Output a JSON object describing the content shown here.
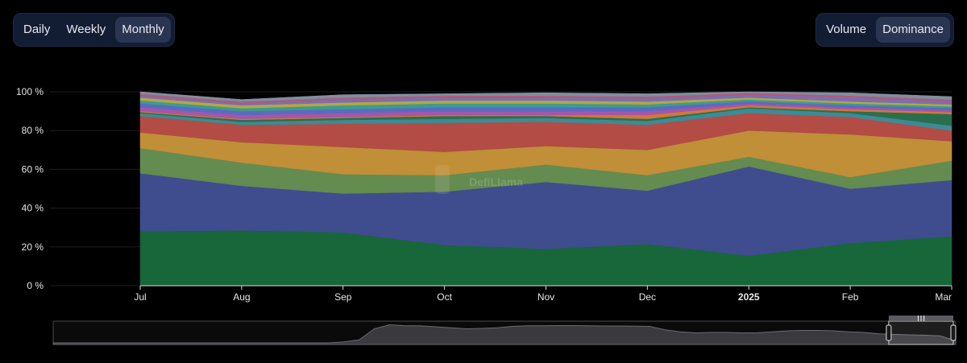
{
  "controls": {
    "granularity": [
      {
        "label": "Daily",
        "active": false
      },
      {
        "label": "Weekly",
        "active": false
      },
      {
        "label": "Monthly",
        "active": true
      }
    ],
    "metric": [
      {
        "label": "Volume",
        "active": false
      },
      {
        "label": "Dominance",
        "active": true
      }
    ]
  },
  "watermark": "DefiLlama",
  "chart_data": {
    "type": "area",
    "stacked": true,
    "normalized_percent": true,
    "x": [
      "Jul",
      "Aug",
      "Sep",
      "Oct",
      "Nov",
      "Dec",
      "2025",
      "Feb",
      "Mar"
    ],
    "bold_x_labels": [
      "2025"
    ],
    "y_ticks": [
      "0 %",
      "20 %",
      "40 %",
      "60 %",
      "80 %",
      "100 %"
    ],
    "ylim": [
      0,
      100
    ],
    "grid": true,
    "legend": "none",
    "series": [
      {
        "color": "#17673a",
        "values": [
          28,
          28.5,
          27.5,
          21,
          19,
          21.5,
          15.5,
          22,
          25.5
        ]
      },
      {
        "color": "#3f4d8f",
        "values": [
          30,
          23,
          20,
          27.5,
          34.5,
          27.5,
          46,
          28,
          29
        ]
      },
      {
        "color": "#648b50",
        "values": [
          13,
          12,
          10,
          8.5,
          9,
          8,
          5,
          6,
          10
        ]
      },
      {
        "color": "#c08f37",
        "values": [
          8,
          10.5,
          14,
          12,
          9.5,
          13,
          13.5,
          22,
          10
        ]
      },
      {
        "color": "#b34c45",
        "values": [
          8.5,
          9,
          12,
          15,
          12.5,
          13,
          9,
          9,
          5.5
        ]
      },
      {
        "color": "#3e8a96",
        "values": [
          1.5,
          1.5,
          2,
          2,
          2,
          2,
          2.5,
          2,
          2.5
        ]
      },
      {
        "color": "#2a6f4d",
        "values": [
          0.5,
          1,
          1,
          1.5,
          1,
          1,
          0.5,
          1,
          6
        ]
      },
      {
        "color": "#d0793a",
        "values": [
          0.5,
          0.5,
          0.5,
          0.5,
          0.5,
          2,
          1,
          1,
          1
        ]
      },
      {
        "color": "#a656a8",
        "values": [
          2,
          2,
          2,
          2,
          2,
          2,
          1,
          1,
          1
        ]
      },
      {
        "color": "#5a6bc0",
        "values": [
          2,
          2,
          2,
          2,
          2,
          2,
          1,
          1,
          1
        ]
      },
      {
        "color": "#3f9a8f",
        "values": [
          1.5,
          1.5,
          2,
          2,
          2,
          1.5,
          1,
          1,
          1
        ]
      },
      {
        "color": "#b3a744",
        "values": [
          1.5,
          1.5,
          1.5,
          1.5,
          1.5,
          1.5,
          1,
          1,
          1
        ]
      },
      {
        "color": "#7a6fb0",
        "values": [
          1,
          1,
          1.5,
          1.5,
          1.5,
          1.5,
          1.5,
          2,
          1.5
        ]
      },
      {
        "color": "#b05a7a",
        "values": [
          1,
          1,
          1,
          1,
          1,
          1,
          1,
          1,
          1
        ]
      },
      {
        "color": "#7f8f9f",
        "values": [
          1,
          1,
          1.5,
          1,
          1.5,
          1.5,
          1.5,
          1.5,
          1.5
        ]
      }
    ]
  },
  "overview": {
    "values": [
      0,
      0,
      0,
      0,
      0,
      0,
      0,
      0,
      0,
      0,
      0,
      0,
      0,
      0,
      0,
      0,
      0,
      0,
      0,
      0.05,
      0.15,
      0.7,
      0.9,
      0.85,
      0.85,
      0.8,
      0.75,
      0.7,
      0.72,
      0.75,
      0.82,
      0.85,
      0.85,
      0.86,
      0.86,
      0.85,
      0.84,
      0.84,
      0.83,
      0.82,
      0.65,
      0.55,
      0.5,
      0.52,
      0.52,
      0.5,
      0.5,
      0.55,
      0.6,
      0.62,
      0.62,
      0.6,
      0.55,
      0.52,
      0.45,
      0.42,
      0.4,
      0.38,
      0.35,
      0.1
    ],
    "selection": [
      0.924,
      1.0
    ]
  }
}
